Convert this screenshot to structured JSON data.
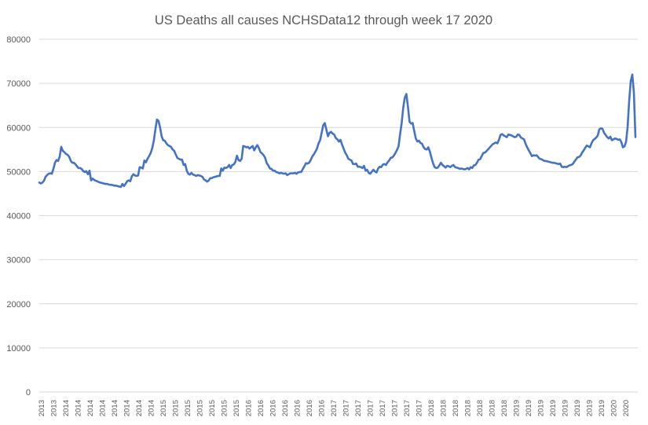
{
  "colors": {
    "series": "#4472C4",
    "grid": "#D9D9D9",
    "text": "#595959"
  },
  "chart_data": {
    "type": "line",
    "title": "US Deaths all causes NCHSData12 through week 17 2020",
    "xlabel": "",
    "ylabel": "",
    "ylim": [
      0,
      80000
    ],
    "yticks": [
      0,
      10000,
      20000,
      30000,
      40000,
      50000,
      60000,
      70000,
      80000
    ],
    "grid": "horizontal",
    "legend": "none",
    "x_tick_labels": [
      "2013",
      "2013",
      "2014",
      "2014",
      "2014",
      "2014",
      "2014",
      "2014",
      "2014",
      "2014",
      "2015",
      "2015",
      "2015",
      "2015",
      "2015",
      "2015",
      "2015",
      "2016",
      "2016",
      "2016",
      "2016",
      "2016",
      "2016",
      "2016",
      "2017",
      "2017",
      "2017",
      "2017",
      "2017",
      "2017",
      "2017",
      "2017",
      "2018",
      "2018",
      "2018",
      "2018",
      "2018",
      "2018",
      "2018",
      "2019",
      "2019",
      "2019",
      "2019",
      "2019",
      "2019",
      "2019",
      "2019",
      "2020",
      "2020"
    ],
    "series": [
      {
        "name": "US Deaths all causes",
        "values": [
          47500,
          47300,
          47500,
          47900,
          48800,
          49200,
          49500,
          49600,
          49500,
          50600,
          52000,
          52600,
          52400,
          53400,
          55600,
          54700,
          54400,
          54000,
          53800,
          53400,
          52500,
          52000,
          52000,
          51700,
          51200,
          50800,
          50800,
          50600,
          50100,
          49900,
          50100,
          49400,
          50200,
          48000,
          48400,
          48100,
          47900,
          47800,
          47600,
          47500,
          47400,
          47300,
          47200,
          47200,
          47100,
          47000,
          47000,
          46900,
          46800,
          46800,
          46700,
          46600,
          46500,
          47200,
          46700,
          47200,
          47800,
          48000,
          47800,
          48900,
          49400,
          49100,
          49000,
          49100,
          51000,
          50900,
          50700,
          52500,
          52100,
          52900,
          53500,
          54200,
          55300,
          57000,
          59500,
          61800,
          61500,
          60000,
          58000,
          57100,
          57000,
          56400,
          56000,
          55800,
          55600,
          55000,
          54700,
          53900,
          53100,
          52900,
          52700,
          52700,
          51500,
          51700,
          50200,
          49500,
          49300,
          49700,
          49300,
          49200,
          49000,
          49200,
          49100,
          49000,
          48800,
          48200,
          48000,
          47700,
          48000,
          48500,
          48500,
          48700,
          48800,
          48900,
          49000,
          49000,
          50700,
          50200,
          50900,
          50800,
          51000,
          51500,
          50800,
          51500,
          51600,
          52200,
          53600,
          52600,
          52400,
          52900,
          55800,
          55700,
          55500,
          55600,
          55200,
          55500,
          55800,
          54800,
          55500,
          56000,
          55300,
          54400,
          54100,
          53700,
          53100,
          51900,
          51400,
          50700,
          50600,
          50200,
          50200,
          49900,
          49800,
          49600,
          49700,
          49600,
          49500,
          49600,
          49200,
          49400,
          49600,
          49600,
          49600,
          49700,
          49500,
          49800,
          49900,
          49900,
          50600,
          51200,
          51900,
          51800,
          52000,
          52600,
          53400,
          53900,
          54500,
          55200,
          56400,
          57100,
          58800,
          60500,
          61000,
          59500,
          58000,
          58800,
          59000,
          58600,
          58400,
          57600,
          57300,
          56800,
          57200,
          56100,
          55200,
          54300,
          53700,
          52900,
          52700,
          52500,
          51700,
          51700,
          51800,
          51100,
          51100,
          51000,
          50800,
          51300,
          50200,
          50400,
          49700,
          49500,
          50000,
          50400,
          50000,
          49800,
          50700,
          51100,
          51000,
          51600,
          51700,
          51500,
          52100,
          52500,
          53100,
          53200,
          53600,
          54200,
          54900,
          55700,
          58500,
          61000,
          64500,
          66800,
          67600,
          64700,
          61300,
          60900,
          61000,
          59200,
          57500,
          56800,
          57000,
          56500,
          56300,
          55500,
          55100,
          55000,
          55500,
          54500,
          53100,
          51900,
          51000,
          50800,
          50900,
          51400,
          52000,
          51500,
          51200,
          50900,
          51300,
          51200,
          51000,
          51300,
          51500,
          51000,
          50900,
          50800,
          50600,
          50700,
          50600,
          50500,
          50600,
          50800,
          50500,
          51000,
          50800,
          51400,
          51500,
          52000,
          52700,
          52800,
          53500,
          54200,
          54300,
          54600,
          55000,
          55400,
          55800,
          56200,
          56400,
          56600,
          56400,
          57200,
          58300,
          58500,
          58200,
          58000,
          57800,
          58400,
          58300,
          58200,
          58000,
          57800,
          57900,
          58400,
          58300,
          57700,
          57500,
          57300,
          56300,
          55500,
          54800,
          54200,
          53500,
          53700,
          53600,
          53700,
          53300,
          52900,
          52800,
          52600,
          52400,
          52400,
          52300,
          52200,
          52100,
          52000,
          52000,
          51900,
          51800,
          51700,
          51800,
          51100,
          51000,
          51100,
          51000,
          51200,
          51400,
          51500,
          51700,
          52200,
          52700,
          53200,
          53300,
          53600,
          54300,
          54800,
          55400,
          55900,
          55700,
          55500,
          56400,
          57100,
          57400,
          57700,
          58200,
          59600,
          59800,
          59700,
          58800,
          58300,
          57800,
          57500,
          57900,
          57100,
          57300,
          57500,
          57400,
          57200,
          57300,
          56700,
          55500,
          55700,
          56700,
          60000,
          66000,
          70500,
          72000,
          68000,
          57800
        ]
      }
    ]
  }
}
